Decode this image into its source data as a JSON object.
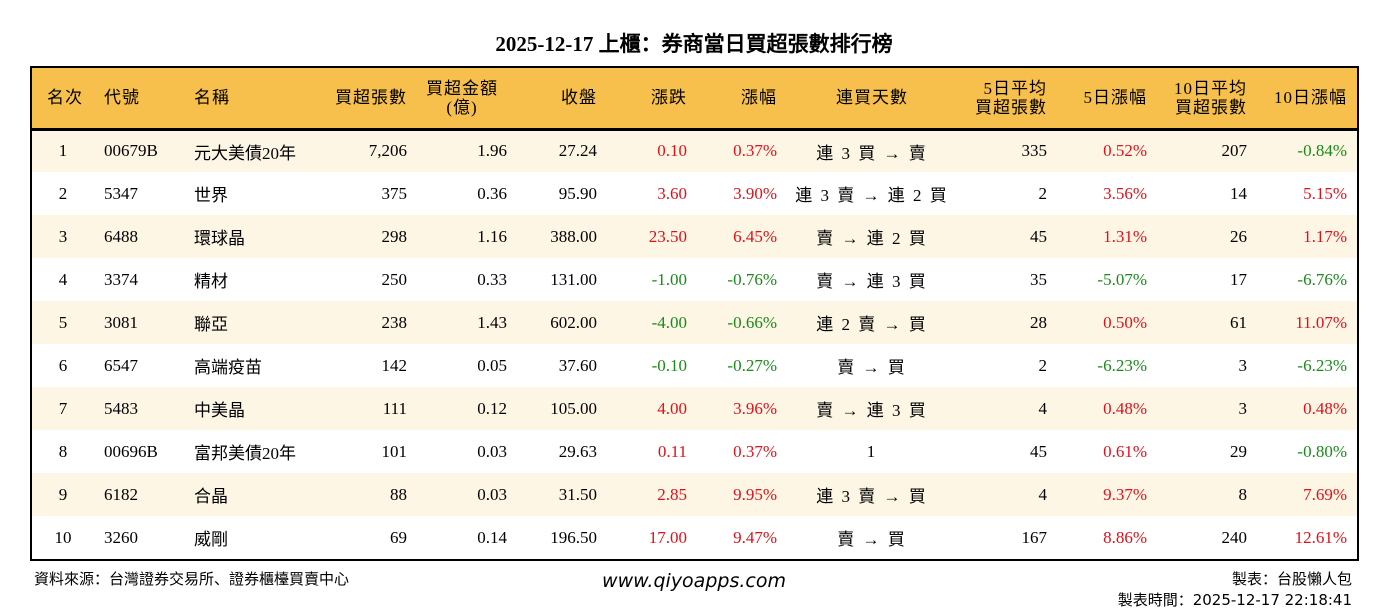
{
  "title": "2025-12-17 上櫃：券商當日買超張數排行榜",
  "colors": {
    "header_bg": "#f7bf4b",
    "stripe": "#fdf6e4",
    "up": "#e0101a",
    "down": "#1a8a1a"
  },
  "headers": [
    "名次",
    "代號",
    "名稱",
    "買超張數",
    "買超金額\n(億)",
    "收盤",
    "漲跌",
    "漲幅",
    "連買天數",
    "5日平均\n買超張數",
    "5日漲幅",
    "10日平均\n買超張數",
    "10日漲幅"
  ],
  "rows": [
    {
      "rank": "1",
      "code": "00679B",
      "name": "元大美債20年",
      "buy": "7,206",
      "amount": "1.96",
      "close": "27.24",
      "chg": "0.10",
      "pct": "0.37%",
      "days": "連 3 買 → 賣",
      "avg5": "335",
      "pct5": "0.52%",
      "avg10": "207",
      "pct10": "-0.84%"
    },
    {
      "rank": "2",
      "code": "5347",
      "name": "世界",
      "buy": "375",
      "amount": "0.36",
      "close": "95.90",
      "chg": "3.60",
      "pct": "3.90%",
      "days": "連 3 賣 → 連 2 買",
      "avg5": "2",
      "pct5": "3.56%",
      "avg10": "14",
      "pct10": "5.15%"
    },
    {
      "rank": "3",
      "code": "6488",
      "name": "環球晶",
      "buy": "298",
      "amount": "1.16",
      "close": "388.00",
      "chg": "23.50",
      "pct": "6.45%",
      "days": "賣 → 連 2 買",
      "avg5": "45",
      "pct5": "1.31%",
      "avg10": "26",
      "pct10": "1.17%"
    },
    {
      "rank": "4",
      "code": "3374",
      "name": "精材",
      "buy": "250",
      "amount": "0.33",
      "close": "131.00",
      "chg": "-1.00",
      "pct": "-0.76%",
      "days": "賣 → 連 3 買",
      "avg5": "35",
      "pct5": "-5.07%",
      "avg10": "17",
      "pct10": "-6.76%"
    },
    {
      "rank": "5",
      "code": "3081",
      "name": "聯亞",
      "buy": "238",
      "amount": "1.43",
      "close": "602.00",
      "chg": "-4.00",
      "pct": "-0.66%",
      "days": "連 2 賣 → 買",
      "avg5": "28",
      "pct5": "0.50%",
      "avg10": "61",
      "pct10": "11.07%"
    },
    {
      "rank": "6",
      "code": "6547",
      "name": "高端疫苗",
      "buy": "142",
      "amount": "0.05",
      "close": "37.60",
      "chg": "-0.10",
      "pct": "-0.27%",
      "days": "賣 → 買",
      "avg5": "2",
      "pct5": "-6.23%",
      "avg10": "3",
      "pct10": "-6.23%"
    },
    {
      "rank": "7",
      "code": "5483",
      "name": "中美晶",
      "buy": "111",
      "amount": "0.12",
      "close": "105.00",
      "chg": "4.00",
      "pct": "3.96%",
      "days": "賣 → 連 3 買",
      "avg5": "4",
      "pct5": "0.48%",
      "avg10": "3",
      "pct10": "0.48%"
    },
    {
      "rank": "8",
      "code": "00696B",
      "name": "富邦美債20年",
      "buy": "101",
      "amount": "0.03",
      "close": "29.63",
      "chg": "0.11",
      "pct": "0.37%",
      "days": "1",
      "avg5": "45",
      "pct5": "0.61%",
      "avg10": "29",
      "pct10": "-0.80%"
    },
    {
      "rank": "9",
      "code": "6182",
      "name": "合晶",
      "buy": "88",
      "amount": "0.03",
      "close": "31.50",
      "chg": "2.85",
      "pct": "9.95%",
      "days": "連 3 賣 → 買",
      "avg5": "4",
      "pct5": "9.37%",
      "avg10": "8",
      "pct10": "7.69%"
    },
    {
      "rank": "10",
      "code": "3260",
      "name": "威剛",
      "buy": "69",
      "amount": "0.14",
      "close": "196.50",
      "chg": "17.00",
      "pct": "9.47%",
      "days": "賣 → 買",
      "avg5": "167",
      "pct5": "8.86%",
      "avg10": "240",
      "pct10": "12.61%"
    }
  ],
  "footer": {
    "source": "資料來源：台灣證券交易所、證券櫃檯買賣中心",
    "site": "www.qiyoapps.com",
    "author": "製表：台股懶人包",
    "time": "製表時間：2025-12-17 22:18:41"
  }
}
